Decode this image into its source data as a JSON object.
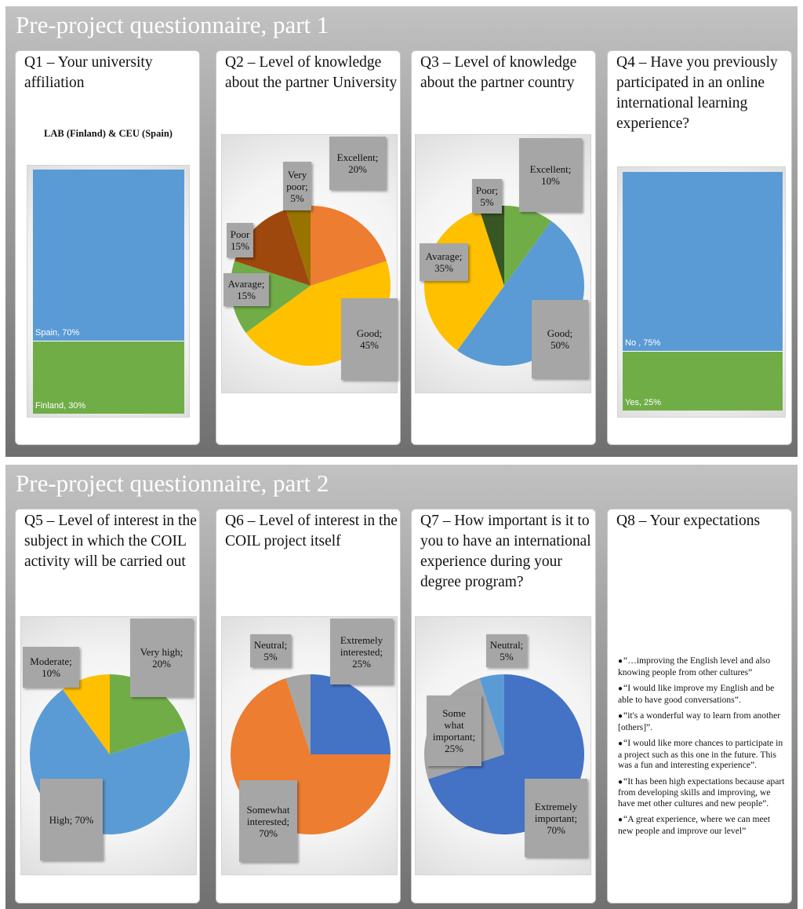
{
  "slides": [
    {
      "title": "Pre-project questionnaire, part 1"
    },
    {
      "title": "Pre-project questionnaire, part 2"
    }
  ],
  "cards": {
    "q1": {
      "title": "Q1 – Your university affiliation",
      "subtitle": "LAB (Finland) & CEU (Spain)",
      "flags": [
        "spain-flag",
        "finland-flag"
      ]
    },
    "q2": {
      "title": "Q2 – Level of knowledge about the partner University"
    },
    "q3": {
      "title": "Q3 – Level of knowledge about the partner country"
    },
    "q4": {
      "title": "Q4 – Have you previously participated in an online international learning experience?"
    },
    "q5": {
      "title": "Q5 – Level of interest in the subject in which the COIL activity will be carried out"
    },
    "q6": {
      "title": "Q6 – Level of interest in the COIL project itself"
    },
    "q7": {
      "title": "Q7 – How important is it to you to have an international experience during your degree program?"
    },
    "q8": {
      "title": "Q8 – Your expectations",
      "quotes": [
        "“…improving the English level and also knowing people from other cultures”",
        "“I would like improve my English and be able to have good conversations”.",
        "“it's a wonderful way to learn from another [others]”.",
        "“I would like more chances to participate in a project such as this one in the future. This was a fun and interesting experience”.",
        "“It has been high expectations because apart from developing skills and improving, we have met other cultures and new people”.",
        "“A great experience, where we can meet new people and improve our level”"
      ]
    }
  },
  "chart_data": [
    {
      "id": "q1",
      "type": "bar",
      "stacked": true,
      "series": [
        {
          "name": "Spain",
          "value": 70,
          "label": "Spain, 70%",
          "color": "#5b9bd5"
        },
        {
          "name": "Finland",
          "value": 30,
          "label": "Finland, 30%",
          "color": "#70ad47"
        }
      ]
    },
    {
      "id": "q2",
      "type": "pie",
      "slices": [
        {
          "name": "Excellent",
          "value": 20,
          "label": [
            "Excellent;",
            "20%"
          ],
          "color": "#ed7d31"
        },
        {
          "name": "Good",
          "value": 45,
          "label": [
            "Good;",
            "45%"
          ],
          "color": "#ffc000"
        },
        {
          "name": "Avarage",
          "value": 15,
          "label": [
            "Avarage;",
            "15%"
          ],
          "color": "#70ad47"
        },
        {
          "name": "Poor",
          "value": 15,
          "label": [
            "Poor",
            "15%"
          ],
          "color": "#9e480e"
        },
        {
          "name": "Very poor",
          "value": 5,
          "label": [
            "Very",
            "poor;",
            "5%"
          ],
          "color": "#997300"
        }
      ]
    },
    {
      "id": "q3",
      "type": "pie",
      "slices": [
        {
          "name": "Excellent",
          "value": 10,
          "label": [
            "Excellent;",
            "10%"
          ],
          "color": "#70ad47"
        },
        {
          "name": "Good",
          "value": 50,
          "label": [
            "Good;",
            "50%"
          ],
          "color": "#5b9bd5"
        },
        {
          "name": "Avarage",
          "value": 35,
          "label": [
            "Avarage;",
            "35%"
          ],
          "color": "#ffc000"
        },
        {
          "name": "Poor",
          "value": 5,
          "label": [
            "Poor;",
            "5%"
          ],
          "color": "#375623"
        }
      ]
    },
    {
      "id": "q4",
      "type": "bar",
      "stacked": true,
      "series": [
        {
          "name": "No",
          "value": 75,
          "label": "No , 75%",
          "color": "#5b9bd5"
        },
        {
          "name": "Yes",
          "value": 25,
          "label": "Yes, 25%",
          "color": "#70ad47"
        }
      ]
    },
    {
      "id": "q5",
      "type": "pie",
      "slices": [
        {
          "name": "Very high",
          "value": 20,
          "label": [
            "Very high;",
            "20%"
          ],
          "color": "#70ad47"
        },
        {
          "name": "High",
          "value": 70,
          "label": [
            "High; 70%"
          ],
          "color": "#5b9bd5"
        },
        {
          "name": "Moderate",
          "value": 10,
          "label": [
            "Moderate;",
            "10%"
          ],
          "color": "#ffc000"
        }
      ]
    },
    {
      "id": "q6",
      "type": "pie",
      "slices": [
        {
          "name": "Extremely interested",
          "value": 25,
          "label": [
            "Extremely",
            "interested;",
            "25%"
          ],
          "color": "#4472c4"
        },
        {
          "name": "Somewhat interested",
          "value": 70,
          "label": [
            "Somewhat",
            "interested;",
            "70%"
          ],
          "color": "#ed7d31"
        },
        {
          "name": "Neutral",
          "value": 5,
          "label": [
            "Neutral;",
            "5%"
          ],
          "color": "#a5a5a5"
        }
      ]
    },
    {
      "id": "q7",
      "type": "pie",
      "slices": [
        {
          "name": "Extremely important",
          "value": 70,
          "label": [
            "Extremely",
            "important;",
            "70%"
          ],
          "color": "#4472c4"
        },
        {
          "name": "Some what important",
          "value": 25,
          "label": [
            "Some",
            "what",
            "important;",
            "25%"
          ],
          "color": "#a5a5a5"
        },
        {
          "name": "Neutral",
          "value": 5,
          "label": [
            "Neutral;",
            "5%"
          ],
          "color": "#5b9bd5"
        }
      ]
    }
  ]
}
